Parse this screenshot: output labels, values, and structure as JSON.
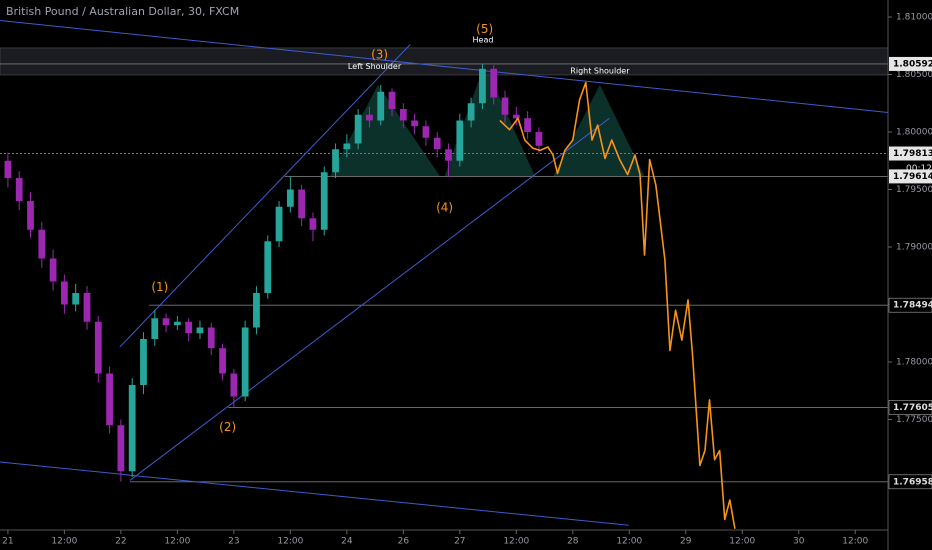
{
  "chart_data": {
    "type": "candlestick",
    "title": "British Pound / Australian Dollar, 30, FXCM",
    "xlim": [
      -0.14,
      15.58
    ],
    "ylim": [
      1.76539,
      1.81148
    ],
    "xticks": [
      {
        "value": 0,
        "label": "21"
      },
      {
        "value": 1,
        "label": "12:00"
      },
      {
        "value": 2,
        "label": "22"
      },
      {
        "value": 3,
        "label": "12:00"
      },
      {
        "value": 4,
        "label": "23"
      },
      {
        "value": 5,
        "label": "12:00"
      },
      {
        "value": 6,
        "label": "24"
      },
      {
        "value": 7,
        "label": "26"
      },
      {
        "value": 8,
        "label": "27"
      },
      {
        "value": 9,
        "label": "12:00"
      },
      {
        "value": 10,
        "label": "28"
      },
      {
        "value": 11,
        "label": "12:00"
      },
      {
        "value": 12,
        "label": "29"
      },
      {
        "value": 13,
        "label": "12:00"
      },
      {
        "value": 14,
        "label": "30"
      },
      {
        "value": 15,
        "label": "12:00"
      }
    ],
    "yticks": [
      {
        "value": 1.81,
        "label": "1.81000"
      },
      {
        "value": 1.805,
        "label": "1.80500"
      },
      {
        "value": 1.8,
        "label": "1.80000"
      },
      {
        "value": 1.795,
        "label": "1.79500"
      },
      {
        "value": 1.79,
        "label": "1.79000"
      },
      {
        "value": 1.785,
        "label": "1.78500"
      },
      {
        "value": 1.78,
        "label": "1.78000"
      },
      {
        "value": 1.775,
        "label": "1.77500"
      }
    ],
    "up_color": "#26a69a",
    "down_color": "#9c27b0",
    "candles": {
      "x": [
        0,
        0.2,
        0.4,
        0.6,
        0.8,
        1.0,
        1.2,
        1.4,
        1.6,
        1.8,
        2.0,
        2.2,
        2.4,
        2.6,
        2.8,
        3.0,
        3.2,
        3.4,
        3.6,
        3.8,
        4.0,
        4.2,
        4.4,
        4.6,
        4.8,
        5.0,
        5.2,
        5.4,
        5.6,
        5.8,
        6.0,
        6.2,
        6.4,
        6.6,
        6.8,
        7.0,
        7.2,
        7.4,
        7.6,
        7.8,
        8.0,
        8.2,
        8.4,
        8.6,
        8.8,
        9.0,
        9.2,
        9.4
      ],
      "ohlc": [
        [
          1.7975,
          1.7982,
          1.7952,
          1.796
        ],
        [
          1.796,
          1.7966,
          1.7932,
          1.794
        ],
        [
          1.794,
          1.7948,
          1.7908,
          1.7915
        ],
        [
          1.7915,
          1.7922,
          1.7882,
          1.789
        ],
        [
          1.789,
          1.7898,
          1.7862,
          1.787
        ],
        [
          1.787,
          1.7876,
          1.7842,
          1.785
        ],
        [
          1.785,
          1.7868,
          1.7844,
          1.786
        ],
        [
          1.786,
          1.7866,
          1.7828,
          1.7835
        ],
        [
          1.7835,
          1.784,
          1.7782,
          1.779
        ],
        [
          1.779,
          1.7796,
          1.7738,
          1.7745
        ],
        [
          1.7745,
          1.775,
          1.7696,
          1.7705
        ],
        [
          1.7705,
          1.7786,
          1.77,
          1.778
        ],
        [
          1.778,
          1.7826,
          1.7772,
          1.782
        ],
        [
          1.782,
          1.7845,
          1.7814,
          1.7838
        ],
        [
          1.7838,
          1.7842,
          1.7826,
          1.7832
        ],
        [
          1.7832,
          1.784,
          1.7828,
          1.7835
        ],
        [
          1.7835,
          1.7838,
          1.7818,
          1.7825
        ],
        [
          1.7825,
          1.7836,
          1.782,
          1.783
        ],
        [
          1.783,
          1.7834,
          1.7806,
          1.7812
        ],
        [
          1.7812,
          1.7816,
          1.7784,
          1.779
        ],
        [
          1.779,
          1.7794,
          1.77605,
          1.777
        ],
        [
          1.777,
          1.7836,
          1.7766,
          1.783
        ],
        [
          1.783,
          1.7866,
          1.7824,
          1.786
        ],
        [
          1.786,
          1.791,
          1.7855,
          1.7905
        ],
        [
          1.7905,
          1.794,
          1.79,
          1.7935
        ],
        [
          1.7935,
          1.79614,
          1.793,
          1.795
        ],
        [
          1.795,
          1.7954,
          1.7918,
          1.7925
        ],
        [
          1.7925,
          1.793,
          1.7905,
          1.7915
        ],
        [
          1.7915,
          1.797,
          1.791,
          1.7965
        ],
        [
          1.7965,
          1.799,
          1.796,
          1.7985
        ],
        [
          1.7985,
          1.7998,
          1.7978,
          1.799
        ],
        [
          1.799,
          1.802,
          1.7985,
          1.8015
        ],
        [
          1.8015,
          1.8022,
          1.8004,
          1.801
        ],
        [
          1.801,
          1.8041,
          1.8006,
          1.8035
        ],
        [
          1.8035,
          1.8038,
          1.8014,
          1.802
        ],
        [
          1.802,
          1.8025,
          1.8004,
          1.801
        ],
        [
          1.801,
          1.8016,
          1.7998,
          1.8005
        ],
        [
          1.8005,
          1.801,
          1.7988,
          1.7995
        ],
        [
          1.7995,
          1.8,
          1.7978,
          1.7985
        ],
        [
          1.7985,
          1.799,
          1.7961,
          1.7975
        ],
        [
          1.7975,
          1.8016,
          1.797,
          1.801
        ],
        [
          1.801,
          1.803,
          1.8004,
          1.8025
        ],
        [
          1.8025,
          1.80592,
          1.802,
          1.8055
        ],
        [
          1.8055,
          1.8058,
          1.8024,
          1.803
        ],
        [
          1.803,
          1.8036,
          1.8008,
          1.8015
        ],
        [
          1.8015,
          1.8022,
          1.8006,
          1.8012
        ],
        [
          1.8012,
          1.8018,
          1.7994,
          1.8
        ],
        [
          1.8,
          1.8004,
          1.7982,
          1.7988
        ]
      ]
    },
    "projection": {
      "color": "#f7931a",
      "x": [
        8.71,
        8.88,
        9.03,
        9.15,
        9.29,
        9.42,
        9.56,
        9.65,
        9.73,
        9.86,
        10.0,
        10.12,
        10.23,
        10.34,
        10.44,
        10.57,
        10.69,
        10.83,
        10.97,
        11.1,
        11.19,
        11.27,
        11.36,
        11.47,
        11.63,
        11.72,
        11.82,
        11.93,
        12.04,
        12.12,
        12.25,
        12.34,
        12.42,
        12.51,
        12.6,
        12.69,
        12.78,
        12.87
      ],
      "values": [
        1.801,
        1.8002,
        1.8012,
        1.7993,
        1.7986,
        1.7984,
        1.7987,
        1.798,
        1.7964,
        1.7984,
        1.7993,
        1.8028,
        1.8043,
        1.7993,
        1.8006,
        1.7977,
        1.7993,
        1.7976,
        1.7963,
        1.798,
        1.7963,
        1.7893,
        1.7976,
        1.7954,
        1.7889,
        1.781,
        1.7845,
        1.7819,
        1.7854,
        1.7806,
        1.771,
        1.7723,
        1.7767,
        1.7715,
        1.7723,
        1.7663,
        1.768,
        1.7655
      ]
    },
    "levels": [
      {
        "value": 1.80592,
        "start": -0.14,
        "highlight": true,
        "style": "band"
      },
      {
        "value": 1.79813,
        "start": -0.14,
        "highlight": true,
        "style": "dotted"
      },
      {
        "value": 1.79614,
        "start": 4.9,
        "highlight": true,
        "style": "solid"
      },
      {
        "value": 1.78494,
        "start": 2.5,
        "highlight": false,
        "style": "solid"
      },
      {
        "value": 1.77605,
        "start": 3.9,
        "highlight": false,
        "style": "solid"
      },
      {
        "value": 1.76958,
        "start": 2.16,
        "highlight": false,
        "style": "solid"
      }
    ],
    "countdown": "00:12",
    "trendlines": [
      {
        "x": [
          1.98,
          7.12
        ],
        "y": [
          1.7813,
          1.8076
        ]
      },
      {
        "x": [
          2.16,
          10.65
        ],
        "y": [
          1.7697,
          1.8012
        ]
      },
      {
        "x": [
          -0.14,
          15.58
        ],
        "y": [
          1.8097,
          1.8017
        ]
      },
      {
        "x": [
          -0.14,
          10.99
        ],
        "y": [
          1.7713,
          1.7658
        ]
      }
    ],
    "trend_color": "#3d5ccf",
    "pattern_color": "#0e3a31",
    "pattern": [
      {
        "x": [
          5.7,
          6.55,
          7.65
        ],
        "y": [
          1.79614,
          1.8041,
          1.79614
        ]
      },
      {
        "x": [
          7.73,
          8.44,
          9.33
        ],
        "y": [
          1.79614,
          1.80592,
          1.79614
        ]
      },
      {
        "x": [
          9.65,
          10.48,
          11.27
        ],
        "y": [
          1.79614,
          1.8041,
          1.79614
        ]
      }
    ],
    "annotations": [
      {
        "text": "(1)",
        "x": 2.69,
        "y": 1.7865,
        "color": "#f7931a"
      },
      {
        "text": "(2)",
        "x": 3.89,
        "y": 1.7743,
        "color": "#f7931a"
      },
      {
        "text": "(3)",
        "x": 6.58,
        "y": 1.8067,
        "color": "#f7931a"
      },
      {
        "text": "(4)",
        "x": 7.73,
        "y": 1.7934,
        "color": "#f7931a"
      },
      {
        "text": "(5)",
        "x": 8.44,
        "y": 1.8089,
        "color": "#f7931a"
      },
      {
        "text": "Head",
        "x": 8.41,
        "y": 1.808,
        "color": "#ffffff"
      },
      {
        "text": "Left Shoulder",
        "x": 6.49,
        "y": 1.8057,
        "color": "#ffffff"
      },
      {
        "text": "Right Shoulder",
        "x": 10.48,
        "y": 1.8053,
        "color": "#ffffff"
      }
    ]
  }
}
